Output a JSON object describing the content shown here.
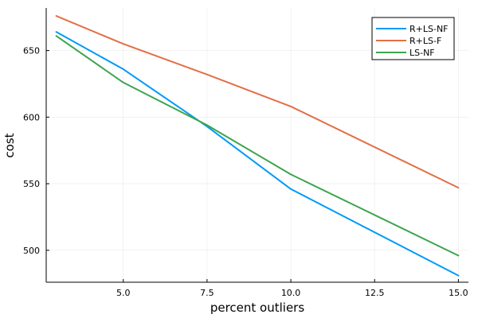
{
  "chart_data": {
    "type": "line",
    "xlabel": "percent outliers",
    "ylabel": "cost",
    "xlim": [
      2.7,
      15.3
    ],
    "ylim": [
      476,
      682
    ],
    "xticks": [
      5.0,
      7.5,
      10.0,
      12.5,
      15.0
    ],
    "xtick_labels": [
      "5.0",
      "7.5",
      "10.0",
      "12.5",
      "15.0"
    ],
    "yticks": [
      500,
      550,
      600,
      650
    ],
    "ytick_labels": [
      "500",
      "550",
      "600",
      "650"
    ],
    "grid": true,
    "legend_position": "top-right",
    "x": [
      3,
      5,
      7.5,
      10,
      15
    ],
    "series": [
      {
        "name": "R+LS-NF",
        "color": "#009af9",
        "values": [
          664,
          636,
          593,
          546,
          481
        ]
      },
      {
        "name": "R+LS-F",
        "color": "#e26f46",
        "values": [
          676,
          655,
          632,
          608,
          547
        ]
      },
      {
        "name": "LS-NF",
        "color": "#3ea44e",
        "values": [
          661,
          626,
          594,
          557,
          496
        ]
      }
    ]
  }
}
